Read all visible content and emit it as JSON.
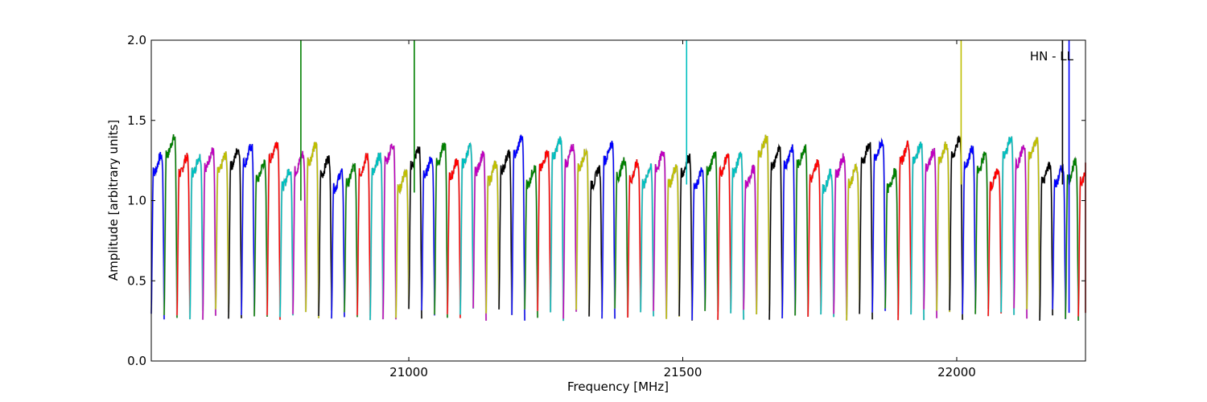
{
  "chart_data": {
    "type": "line",
    "title": "",
    "xlabel": "Frequency [MHz]",
    "ylabel": "Amplitude [arbitrary units]",
    "xlim": [
      20530,
      22235
    ],
    "ylim": [
      0.0,
      2.0
    ],
    "xticks": [
      21000,
      21500,
      22000
    ],
    "xtick_labels": [
      "21000",
      "21500",
      "22000"
    ],
    "yticks": [
      0.0,
      0.5,
      1.0,
      1.5,
      2.0
    ],
    "ytick_labels": [
      "0.0",
      "0.5",
      "1.0",
      "1.5",
      "2.0"
    ],
    "grid": false,
    "annotation": "HN - LL",
    "channel_width_mhz": 23.5,
    "color_cycle": [
      "#0000ff",
      "#007f00",
      "#ff0000",
      "#00bfbf",
      "#bf00bf",
      "#bfbf00",
      "#000000"
    ],
    "backdrop_color": "#bbbbbb",
    "spikes": [
      {
        "x": 20803,
        "y_top": 2.0,
        "y_bottom": 1.0,
        "color": "#007f00"
      },
      {
        "x": 21010,
        "y_top": 2.0,
        "y_bottom": 1.05,
        "color": "#007f00"
      },
      {
        "x": 21507,
        "y_top": 2.0,
        "y_bottom": 1.1,
        "color": "#00bfbf"
      },
      {
        "x": 22008,
        "y_top": 2.0,
        "y_bottom": 1.1,
        "color": "#bfbf00"
      },
      {
        "x": 22193,
        "y_top": 2.0,
        "y_bottom": 1.1,
        "color": "#000000"
      },
      {
        "x": 22205,
        "y_top": 2.0,
        "y_bottom": 0.3,
        "color": "#0000ff"
      }
    ]
  }
}
